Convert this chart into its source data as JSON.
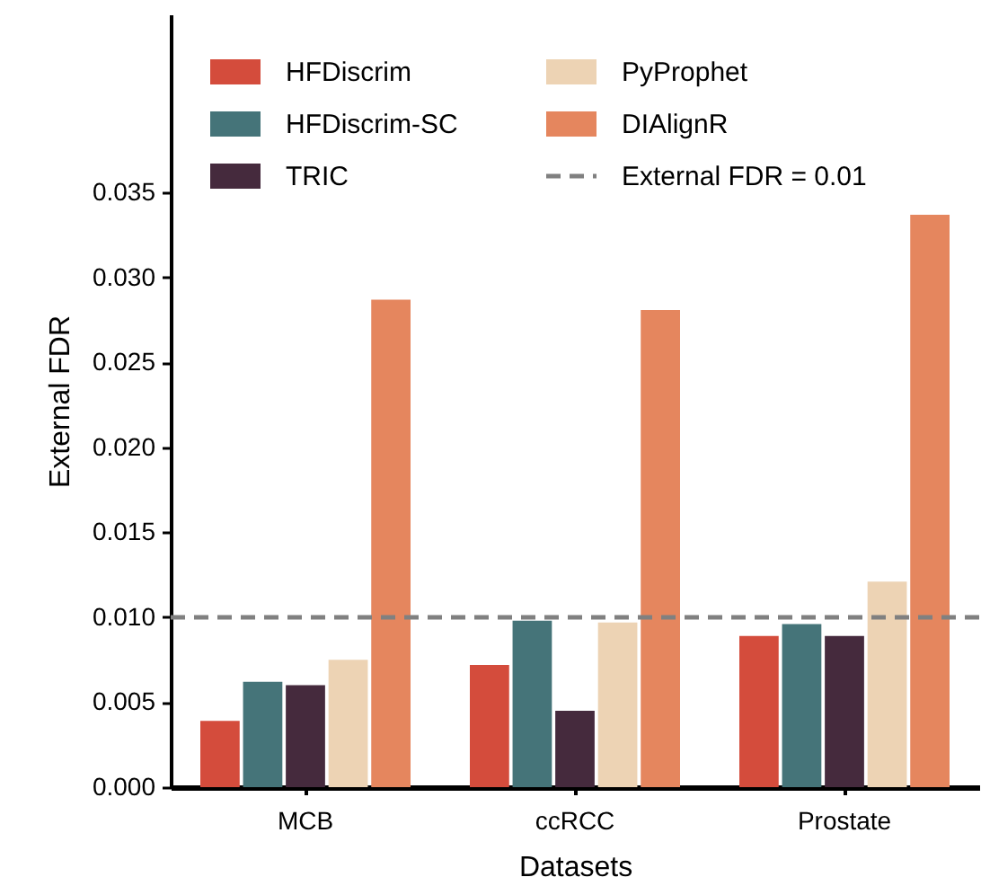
{
  "chart_data": {
    "type": "bar",
    "xlabel": "Datasets",
    "ylabel": "External FDR",
    "categories": [
      "MCB",
      "ccRCC",
      "Prostate"
    ],
    "series": [
      {
        "name": "HFDiscrim",
        "color": "#d44c3c",
        "values": [
          0.0039,
          0.0072,
          0.0089
        ]
      },
      {
        "name": "HFDiscrim-SC",
        "color": "#457479",
        "values": [
          0.0062,
          0.0098,
          0.0096
        ]
      },
      {
        "name": "TRIC",
        "color": "#452a3d",
        "values": [
          0.006,
          0.0045,
          0.0089
        ]
      },
      {
        "name": "PyProphet",
        "color": "#edd3b4",
        "values": [
          0.0075,
          0.0097,
          0.0121
        ]
      },
      {
        "name": "DIAlignR",
        "color": "#e5865e",
        "values": [
          0.0287,
          0.0281,
          0.0337
        ]
      }
    ],
    "ylim": [
      0,
      0.0455
    ],
    "yticks": [
      {
        "value": 0,
        "label": "0.000"
      },
      {
        "value": 0.005,
        "label": "0.005"
      },
      {
        "value": 0.01,
        "label": "0.010"
      },
      {
        "value": 0.015,
        "label": "0.015"
      },
      {
        "value": 0.02,
        "label": "0.020"
      },
      {
        "value": 0.025,
        "label": "0.025"
      },
      {
        "value": 0.03,
        "label": "0.030"
      },
      {
        "value": 0.035,
        "label": "0.035"
      }
    ],
    "ref_lines": [
      {
        "axis": "y",
        "value": 0.01,
        "label": "External FDR = 0.01",
        "color": "#808080",
        "line_style": "dashed"
      }
    ],
    "legend": "top left",
    "grid": false
  }
}
